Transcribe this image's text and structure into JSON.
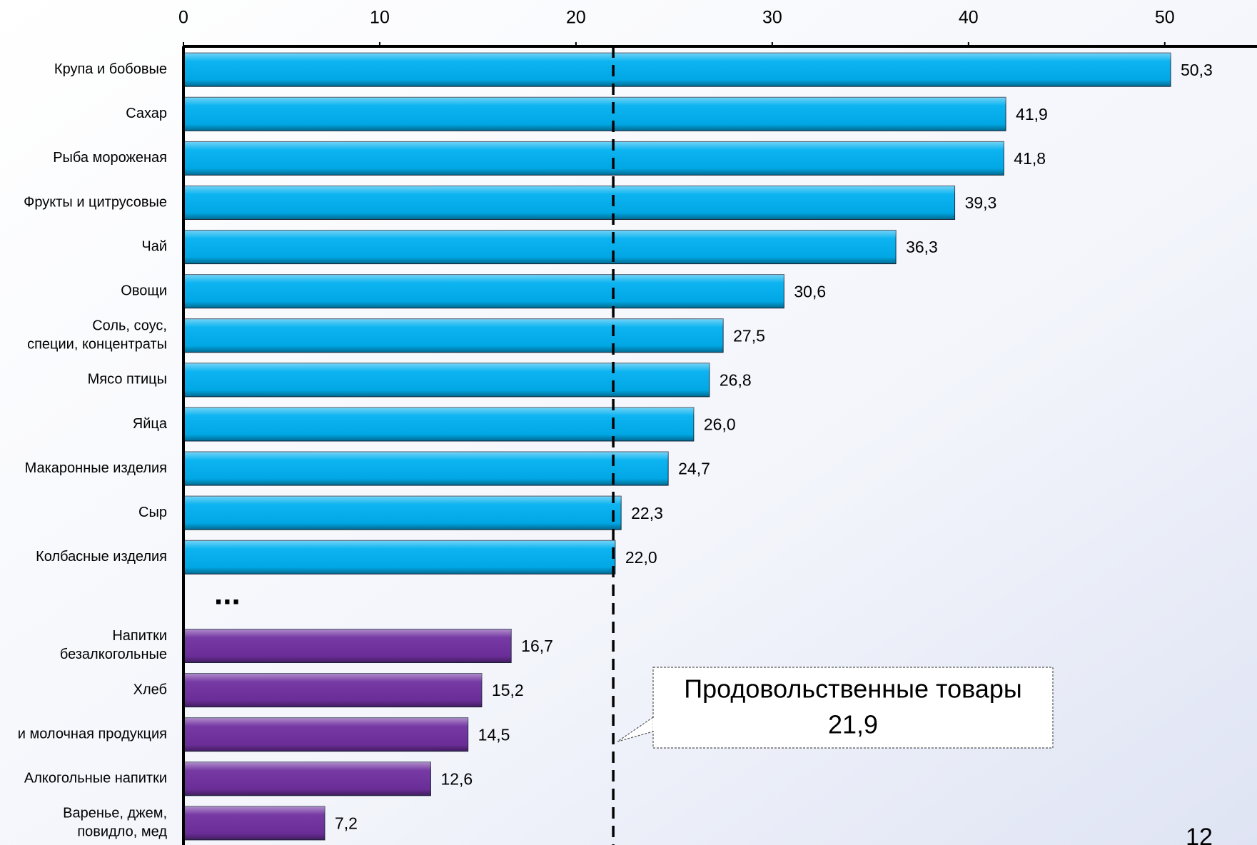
{
  "chart_data": {
    "type": "bar",
    "orientation": "horizontal",
    "categories": [
      "Крупа и бобовые",
      "Сахар",
      "Рыба мороженая",
      "Фрукты и цитрусовые",
      "Чай",
      "Овощи",
      "Соль, соус,\nспеции, концентраты",
      "Мясо птицы",
      "Яйца",
      "Макаронные изделия",
      "Сыр",
      "Колбасные изделия",
      null,
      "Напитки\nбезалкогольные",
      "Хлеб",
      "и молочная продукция",
      "Алкогольные напитки",
      "Варенье, джем,\nповидло, мед"
    ],
    "values": [
      50.3,
      41.9,
      41.8,
      39.3,
      36.3,
      30.6,
      27.5,
      26.8,
      26.0,
      24.7,
      22.3,
      22.0,
      null,
      16.7,
      15.2,
      14.5,
      12.6,
      7.2
    ],
    "value_labels": [
      "50,3",
      "41,9",
      "41,8",
      "39,3",
      "36,3",
      "30,6",
      "27,5",
      "26,8",
      "26,0",
      "24,7",
      "22,3",
      "22,0",
      null,
      "16,7",
      "15,2",
      "14,5",
      "12,6",
      "7,2"
    ],
    "colors": [
      "#00b0f0",
      "#00b0f0",
      "#00b0f0",
      "#00b0f0",
      "#00b0f0",
      "#00b0f0",
      "#00b0f0",
      "#00b0f0",
      "#00b0f0",
      "#00b0f0",
      "#00b0f0",
      "#00b0f0",
      null,
      "#7030a0",
      "#7030a0",
      "#7030a0",
      "#7030a0",
      "#7030a0"
    ],
    "gap_annotation": "...",
    "xlim": [
      0,
      54.7
    ],
    "xticks": [
      0,
      10,
      20,
      30,
      40,
      50
    ],
    "grid": false,
    "reference_line": {
      "value": 21.9,
      "label": "Продовольственные товары",
      "value_label": "21,9"
    },
    "page_number": "12"
  }
}
